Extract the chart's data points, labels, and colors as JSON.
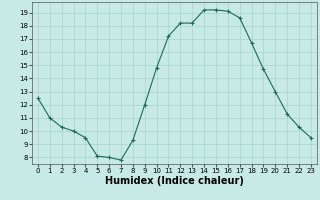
{
  "xlabel": "Humidex (Indice chaleur)",
  "x": [
    0,
    1,
    2,
    3,
    4,
    5,
    6,
    7,
    8,
    9,
    10,
    11,
    12,
    13,
    14,
    15,
    16,
    17,
    18,
    19,
    20,
    21,
    22,
    23
  ],
  "y": [
    12.5,
    11.0,
    10.3,
    10.0,
    9.5,
    8.1,
    8.0,
    7.8,
    9.3,
    12.0,
    14.8,
    17.2,
    18.2,
    18.2,
    19.2,
    19.2,
    19.1,
    18.6,
    16.7,
    14.7,
    13.0,
    11.3,
    10.3,
    9.5
  ],
  "ylim": [
    7.5,
    19.8
  ],
  "xlim": [
    -0.5,
    23.5
  ],
  "yticks": [
    8,
    9,
    10,
    11,
    12,
    13,
    14,
    15,
    16,
    17,
    18,
    19
  ],
  "xticks": [
    0,
    1,
    2,
    3,
    4,
    5,
    6,
    7,
    8,
    9,
    10,
    11,
    12,
    13,
    14,
    15,
    16,
    17,
    18,
    19,
    20,
    21,
    22,
    23
  ],
  "line_color": "#1a6b5a",
  "marker": "+",
  "bg_color": "#c8eae6",
  "grid_color": "#a8d4d0",
  "xlabel_fontsize": 7,
  "tick_fontsize": 5,
  "markersize": 3,
  "linewidth": 0.8
}
